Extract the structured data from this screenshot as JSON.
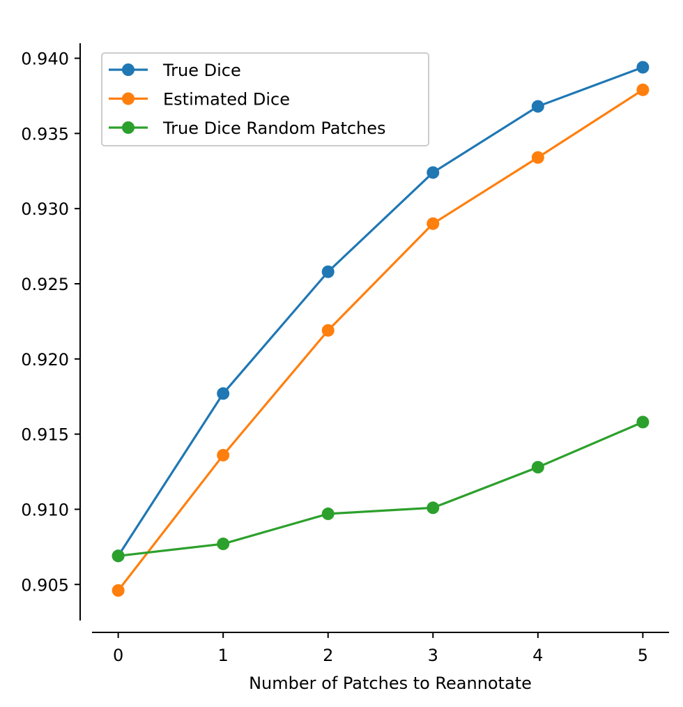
{
  "chart_data": {
    "type": "line",
    "title": "",
    "xlabel": "Number of Patches to Reannotate",
    "ylabel": "",
    "x": [
      0,
      1,
      2,
      3,
      4,
      5
    ],
    "xticks": [
      "0",
      "1",
      "2",
      "3",
      "4",
      "5"
    ],
    "yticks": [
      "0.905",
      "0.910",
      "0.915",
      "0.920",
      "0.925",
      "0.930",
      "0.935",
      "0.940"
    ],
    "xlim": [
      -0.25,
      5.25
    ],
    "ylim": [
      0.9026,
      0.941
    ],
    "grid": false,
    "legend_position": "top-left",
    "series": [
      {
        "name": "True Dice",
        "color": "#1f77b4",
        "marker": "circle",
        "values": [
          0.9069,
          0.9177,
          0.9258,
          0.9324,
          0.9368,
          0.9394
        ]
      },
      {
        "name": "Estimated Dice",
        "color": "#ff7f0e",
        "marker": "circle",
        "values": [
          0.9046,
          0.9136,
          0.9219,
          0.929,
          0.9334,
          0.9379
        ]
      },
      {
        "name": "True Dice Random Patches",
        "color": "#2ca02c",
        "marker": "circle",
        "values": [
          0.9069,
          0.9077,
          0.9097,
          0.9101,
          0.9128,
          0.9158
        ]
      }
    ]
  }
}
